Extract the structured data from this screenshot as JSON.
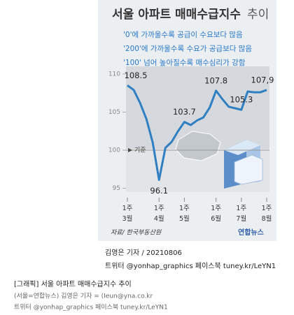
{
  "chart_data": {
    "type": "line",
    "title": "서울 아파트 매매수급지수",
    "title_suffix": "추이",
    "notes": [
      "'0'에 가까울수록 공급이 수요보다 많음",
      "'200'에 가까울수록 수요가 공급보다 많음",
      "'100' 넘어 높아질수록 매수심리가 강함"
    ],
    "categories": [
      "1주 3월",
      null,
      null,
      null,
      null,
      "1주 4월",
      null,
      null,
      null,
      "1주 5월",
      null,
      null,
      null,
      null,
      "1주 6월",
      null,
      null,
      null,
      "1주 7월",
      null,
      null,
      null,
      "1주 8월"
    ],
    "values": [
      108.5,
      107.9,
      106.2,
      104.1,
      101.0,
      96.1,
      100.3,
      101.1,
      102.5,
      103.7,
      103.3,
      103.9,
      104.3,
      105.6,
      107.8,
      106.7,
      105.7,
      105.5,
      105.3,
      107.7,
      107.6,
      107.6,
      107.9
    ],
    "value_labels": [
      "108.5",
      null,
      null,
      null,
      null,
      "96.1",
      null,
      null,
      null,
      "103.7",
      null,
      null,
      null,
      null,
      "107.8",
      null,
      null,
      null,
      "105.3",
      null,
      null,
      null,
      "107,9"
    ],
    "color": "#2f7fc1",
    "ylim": [
      94.5,
      111
    ],
    "yticks": [
      95,
      100,
      105,
      110
    ],
    "baseline": 100,
    "baseline_label": "기준",
    "source": "자료/ 한국부동산원",
    "logo": "연합뉴스"
  },
  "byline": "김영은 기자 / 20210806",
  "social": "트위터 @yonhap_graphics  페이스북 tuney.kr/LeYN1",
  "caption": {
    "title": "[그래픽] 서울 아파트 매매수급지수 추이",
    "reporter": "(서울=연합뉴스) 김영은 기자 = (Ieun@yna.co.kr",
    "social": "트위터 @yonhap_graphics 페이스북 tuney.kr/LeYN1"
  }
}
